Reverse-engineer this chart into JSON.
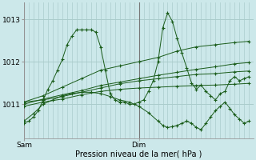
{
  "bg_color": "#cce8ea",
  "grid_color": "#aacccc",
  "line_color": "#1a5c1a",
  "marker": "+",
  "marker_size": 3,
  "marker_lw": 0.8,
  "xlabel": "Pression niveau de la mer( hPa )",
  "xlabel_fontsize": 7,
  "tick_fontsize": 6.5,
  "ylim": [
    1010.2,
    1013.4
  ],
  "yticks": [
    1011,
    1012,
    1013
  ],
  "xmin": 0.0,
  "xmax": 48.0,
  "sam_x": 0.0,
  "dim_x": 24.0,
  "n_xgrid": 48,
  "series": [
    [
      0,
      1010.55,
      1,
      1010.6,
      2,
      1010.7,
      3,
      1010.85,
      4,
      1011.1,
      5,
      1011.35,
      6,
      1011.55,
      7,
      1011.8,
      8,
      1012.05,
      9,
      1012.4,
      10,
      1012.6,
      11,
      1012.75,
      12,
      1012.75,
      13,
      1012.75,
      14,
      1012.75,
      15,
      1012.7,
      16,
      1012.35,
      17,
      1011.8,
      18,
      1011.25,
      19,
      1011.1,
      20,
      1011.05,
      21,
      1011.05,
      22,
      1011.0,
      23,
      1011.0,
      24,
      1011.05,
      25,
      1011.1,
      26,
      1011.3,
      27,
      1011.55,
      28,
      1012.0,
      29,
      1012.8,
      30,
      1013.15,
      31,
      1012.95,
      32,
      1012.55,
      33,
      1012.2,
      34,
      1011.85,
      35,
      1011.5,
      36,
      1011.35,
      37,
      1011.45,
      38,
      1011.3,
      39,
      1011.2,
      40,
      1011.1,
      41,
      1011.25,
      42,
      1011.3,
      43,
      1011.55,
      44,
      1011.65,
      45,
      1011.55,
      46,
      1011.6,
      47,
      1011.65
    ],
    [
      0,
      1011.05,
      4,
      1011.2,
      8,
      1011.4,
      12,
      1011.6,
      16,
      1011.8,
      20,
      1011.9,
      24,
      1012.0,
      28,
      1012.1,
      32,
      1012.25,
      36,
      1012.35,
      40,
      1012.4,
      44,
      1012.45,
      47,
      1012.48
    ],
    [
      0,
      1011.0,
      4,
      1011.12,
      8,
      1011.22,
      12,
      1011.32,
      16,
      1011.44,
      20,
      1011.52,
      24,
      1011.6,
      28,
      1011.68,
      32,
      1011.75,
      36,
      1011.82,
      40,
      1011.88,
      44,
      1011.95,
      47,
      1011.98
    ],
    [
      0,
      1011.05,
      4,
      1011.1,
      8,
      1011.18,
      12,
      1011.28,
      16,
      1011.38,
      20,
      1011.48,
      24,
      1011.55,
      28,
      1011.6,
      32,
      1011.65,
      36,
      1011.7,
      40,
      1011.72,
      44,
      1011.76,
      47,
      1011.78
    ],
    [
      0,
      1010.95,
      4,
      1011.05,
      8,
      1011.12,
      12,
      1011.22,
      16,
      1011.3,
      20,
      1011.35,
      24,
      1011.38,
      28,
      1011.4,
      32,
      1011.42,
      36,
      1011.44,
      40,
      1011.45,
      44,
      1011.47,
      47,
      1011.49
    ],
    [
      0,
      1010.6,
      2,
      1010.78,
      4,
      1011.0,
      6,
      1011.1,
      8,
      1011.2,
      10,
      1011.25,
      12,
      1011.28,
      14,
      1011.28,
      16,
      1011.25,
      18,
      1011.18,
      20,
      1011.1,
      22,
      1011.05,
      24,
      1010.95,
      26,
      1010.8,
      28,
      1010.6,
      29,
      1010.5,
      30,
      1010.45,
      31,
      1010.47,
      32,
      1010.5,
      33,
      1010.55,
      34,
      1010.6,
      35,
      1010.55,
      36,
      1010.45,
      37,
      1010.4,
      38,
      1010.55,
      39,
      1010.7,
      40,
      1010.85,
      41,
      1010.95,
      42,
      1011.05,
      43,
      1010.9,
      44,
      1010.75,
      45,
      1010.65,
      46,
      1010.55,
      47,
      1010.6
    ]
  ]
}
